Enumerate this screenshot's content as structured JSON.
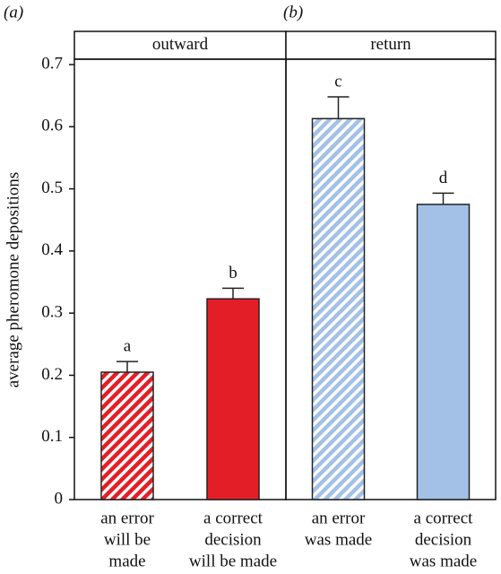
{
  "chart_data": [
    {
      "type": "bar",
      "panel_label": "(a)",
      "strip": "outward",
      "ylabel": "average pheromone depositions",
      "ylim": [
        0,
        0.7
      ],
      "yticks": [
        0,
        0.1,
        0.2,
        0.3,
        0.4,
        0.5,
        0.6,
        0.7
      ],
      "categories": [
        [
          "an error",
          "will be",
          "made"
        ],
        [
          "a correct",
          "decision",
          "will be made"
        ]
      ],
      "values": [
        0.205,
        0.323
      ],
      "errors": [
        0.017,
        0.017
      ],
      "letters": [
        "a",
        "b"
      ],
      "color": "#e41e26",
      "hatch": [
        true,
        false
      ]
    },
    {
      "type": "bar",
      "panel_label": "(b)",
      "strip": "return",
      "ylim": [
        0,
        0.7
      ],
      "categories": [
        [
          "an error",
          "was made"
        ],
        [
          "a correct",
          "decision",
          "was made"
        ]
      ],
      "values": [
        0.613,
        0.475
      ],
      "errors": [
        0.035,
        0.018
      ],
      "letters": [
        "c",
        "d"
      ],
      "color": "#a3c1e6",
      "hatch": [
        true,
        false
      ]
    }
  ]
}
